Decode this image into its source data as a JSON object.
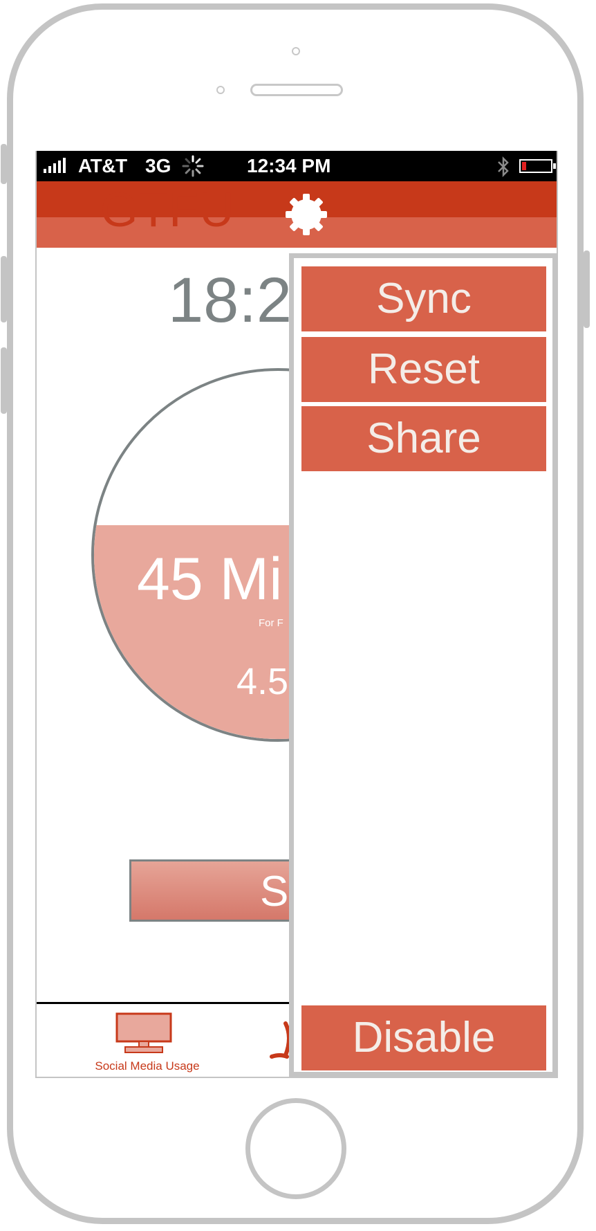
{
  "status_bar": {
    "carrier": "AT&T",
    "network": "3G",
    "time": "12:34 PM"
  },
  "header": {
    "title": "GTFU",
    "settings_icon": "gear-icon"
  },
  "main": {
    "timer_text": "18:2",
    "gauge": {
      "value_text": "45 Mi",
      "caption_text": "For F",
      "sub_text": "4.5",
      "fill_fraction": 0.58
    },
    "button_label": "St"
  },
  "tab_bar": {
    "items": [
      {
        "label": "Social Media Usage",
        "icon": "monitor-icon"
      }
    ]
  },
  "dropdown": {
    "items": [
      {
        "label": "Sync"
      },
      {
        "label": "Reset"
      },
      {
        "label": "Share"
      }
    ],
    "footer_label": "Disable"
  },
  "colors": {
    "brand_red": "#c7391a",
    "menu_button": "#d8624a",
    "gauge_fill": "#e8a89c",
    "gray_text": "#7c8384"
  }
}
